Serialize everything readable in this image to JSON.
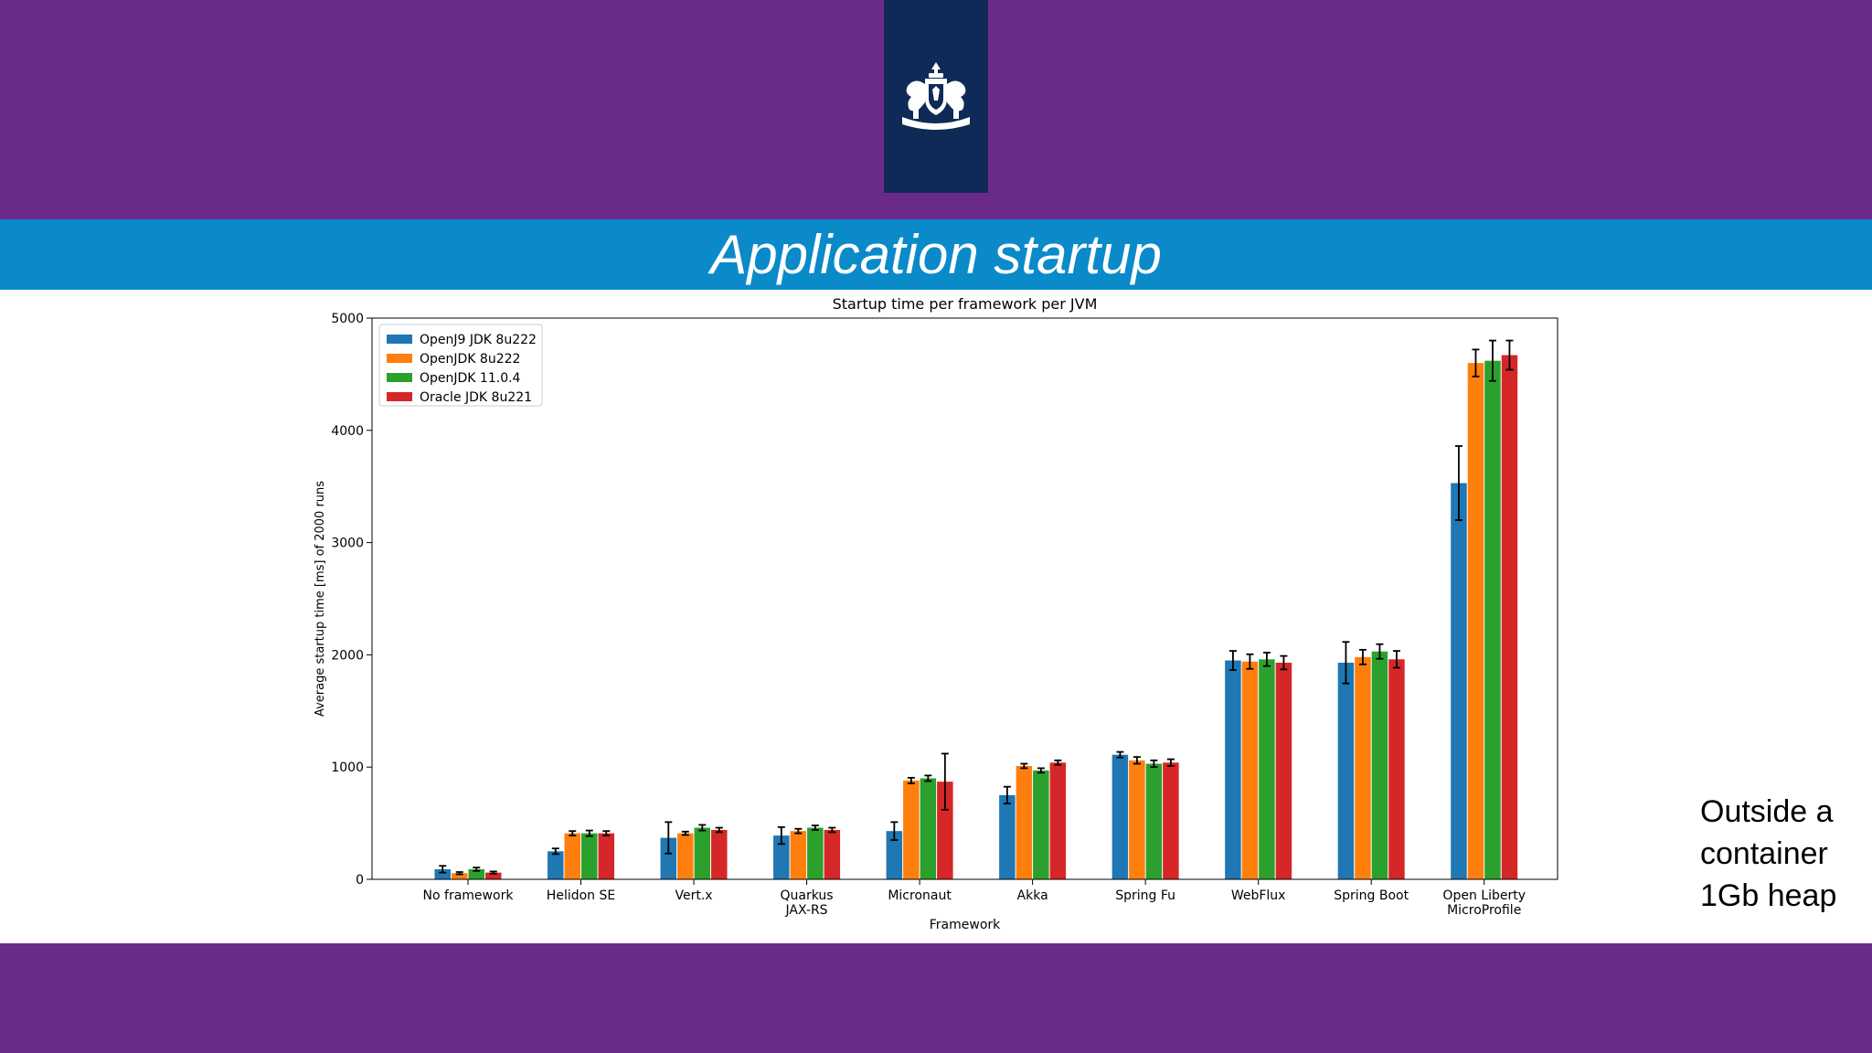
{
  "slide": {
    "title": "Application startup",
    "side_note": [
      "Outside a",
      "container",
      "1Gb heap"
    ],
    "colors": {
      "header_purple": "#6a2a8a",
      "logo_navy": "#0f2a57",
      "title_blue": "#0a8ac9"
    },
    "logo_icon": "royal-coat-of-arms-icon"
  },
  "chart_data": {
    "type": "bar",
    "title": "Startup time per framework per JVM",
    "xlabel": "Framework",
    "ylabel": "Average startup time [ms] of 2000 runs",
    "ylim": [
      0,
      5000
    ],
    "yticks": [
      "0",
      "1000",
      "2000",
      "3000",
      "4000",
      "5000"
    ],
    "legend_position": "top-left",
    "categories": [
      [
        "No framework"
      ],
      [
        "Helidon SE"
      ],
      [
        "Vert.x"
      ],
      [
        "Quarkus",
        "JAX-RS"
      ],
      [
        "Micronaut"
      ],
      [
        "Akka"
      ],
      [
        "Spring Fu"
      ],
      [
        "WebFlux"
      ],
      [
        "Spring Boot"
      ],
      [
        "Open Liberty",
        "MicroProfile"
      ]
    ],
    "series": [
      {
        "name": "OpenJ9 JDK 8u222",
        "color": "#1f77b4",
        "values": [
          90,
          250,
          370,
          390,
          430,
          750,
          1110,
          1950,
          1930,
          3530
        ],
        "errors": [
          30,
          25,
          140,
          75,
          80,
          75,
          25,
          85,
          185,
          330
        ]
      },
      {
        "name": "OpenJDK 8u222",
        "color": "#ff7f0e",
        "values": [
          55,
          410,
          410,
          430,
          880,
          1010,
          1060,
          1940,
          1980,
          4600
        ],
        "errors": [
          10,
          20,
          15,
          20,
          25,
          20,
          30,
          65,
          65,
          120
        ]
      },
      {
        "name": "OpenJDK 11.0.4",
        "color": "#2ca02c",
        "values": [
          90,
          410,
          460,
          460,
          900,
          970,
          1030,
          1960,
          2030,
          4620
        ],
        "errors": [
          15,
          25,
          25,
          20,
          25,
          20,
          30,
          60,
          65,
          180
        ]
      },
      {
        "name": "Oracle JDK 8u221",
        "color": "#d62728",
        "values": [
          60,
          410,
          440,
          440,
          870,
          1040,
          1040,
          1930,
          1960,
          4670
        ],
        "errors": [
          10,
          20,
          20,
          20,
          250,
          20,
          30,
          60,
          75,
          130
        ]
      }
    ]
  }
}
